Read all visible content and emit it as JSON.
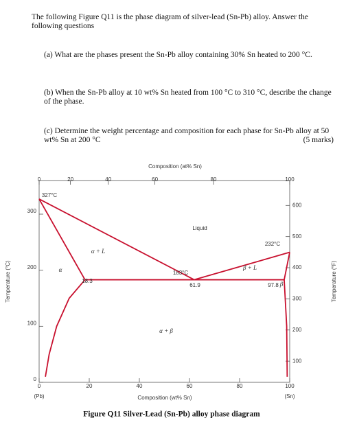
{
  "intro": "The following Figure Q11 is the phase diagram of silver-lead (Sn-Pb) alloy. Answer the following questions",
  "questions": [
    "(a) What are the phases present the Sn-Pb alloy containing 30% Sn heated to 200 °C.",
    "(b) When the Sn-Pb alloy at 10 wt% Sn heated from 100 °C to 310 °C, describe the change of the phase.",
    "(c) Determine the weight percentage and composition for each phase for Sn-Pb alloy at 50 wt% Sn at 200 °C"
  ],
  "marks": "(5 marks)",
  "chart_data": {
    "type": "phase-diagram",
    "caption": "Figure Q11 Silver-Lead (Sn-Pb) alloy phase diagram",
    "xlabel": "Composition (wt% Sn)",
    "x2label": "Composition (at% Sn)",
    "ylabel": "Temperature (°C)",
    "y2label": "Temperature (°F)",
    "xlim": [
      0,
      100
    ],
    "xticks": [
      0,
      20,
      40,
      60,
      80,
      100
    ],
    "x2ticks": [
      {
        "value": 0,
        "label": "0"
      },
      {
        "value": 12.5,
        "label": "20"
      },
      {
        "value": 27.6,
        "label": "40"
      },
      {
        "value": 46.2,
        "label": "60"
      },
      {
        "value": 69.6,
        "label": "80"
      },
      {
        "value": 100,
        "label": "100"
      }
    ],
    "ylim": [
      0,
      360
    ],
    "yticks": [
      0,
      100,
      200,
      300
    ],
    "y2lim": [
      32,
      680
    ],
    "y2ticks": [
      100,
      200,
      300,
      400,
      500,
      600
    ],
    "end_labels": [
      "(Pb)",
      "(Sn)"
    ],
    "color": "#c8102e",
    "curves": [
      {
        "x": [
          0,
          61.9
        ],
        "y": [
          327,
          183
        ]
      },
      {
        "x": [
          61.9,
          100
        ],
        "y": [
          183,
          232
        ]
      },
      {
        "x": [
          0,
          18.3
        ],
        "y": [
          327,
          183
        ]
      },
      {
        "x": [
          18.3,
          97.8
        ],
        "y": [
          183,
          183
        ]
      },
      {
        "x": [
          18.3,
          12,
          7,
          4,
          2.5
        ],
        "y": [
          183,
          150,
          100,
          50,
          10
        ]
      },
      {
        "x": [
          97.8,
          100
        ],
        "y": [
          183,
          232
        ]
      },
      {
        "x": [
          97.8,
          98.8,
          99
        ],
        "y": [
          183,
          100,
          10
        ]
      }
    ],
    "annotations": [
      "327°C",
      "232°C",
      "183°C",
      "18.3",
      "61.9",
      "97.8",
      "Liquid",
      "α + L",
      "β + L",
      "α + β",
      "α",
      "β"
    ]
  }
}
